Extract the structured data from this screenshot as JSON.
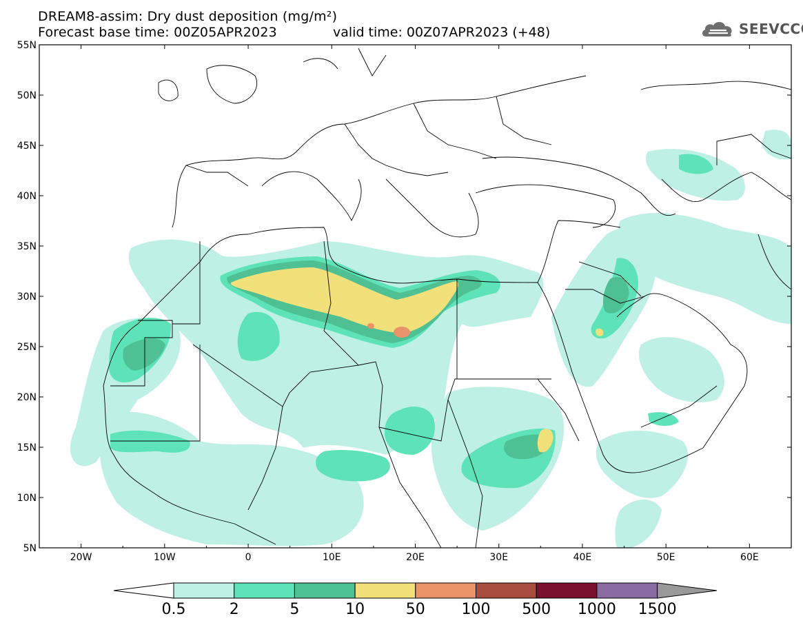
{
  "title_line1": "DREAM8-assim: Dry dust deposition (mg/m²)",
  "title_line2_base": "Forecast base time: 00Z05APR2023",
  "title_line2_valid": "valid time: 00Z07APR2023 (+48)",
  "logo_text": "SEEVCCC",
  "map": {
    "lon_range": [
      -25,
      65
    ],
    "lat_range": [
      5,
      55
    ],
    "lon_ticks": [
      "20W",
      "10W",
      "0",
      "10E",
      "20E",
      "30E",
      "40E",
      "50E",
      "60E"
    ],
    "lat_ticks": [
      "55N",
      "50N",
      "45N",
      "40N",
      "35N",
      "30N",
      "25N",
      "20N",
      "15N",
      "10N",
      "5N"
    ],
    "background": "#ffffff"
  },
  "colorbar": {
    "labels": [
      "0.5",
      "2",
      "5",
      "10",
      "50",
      "100",
      "500",
      "1000",
      "1500"
    ],
    "colors": [
      "#bff0e6",
      "#5ee3b9",
      "#4fbf94",
      "#f2e17a",
      "#e8936a",
      "#a84c3e",
      "#7a0f2e",
      "#8a6aa0"
    ],
    "over_color": "#999999",
    "under_color": "#ffffff"
  }
}
